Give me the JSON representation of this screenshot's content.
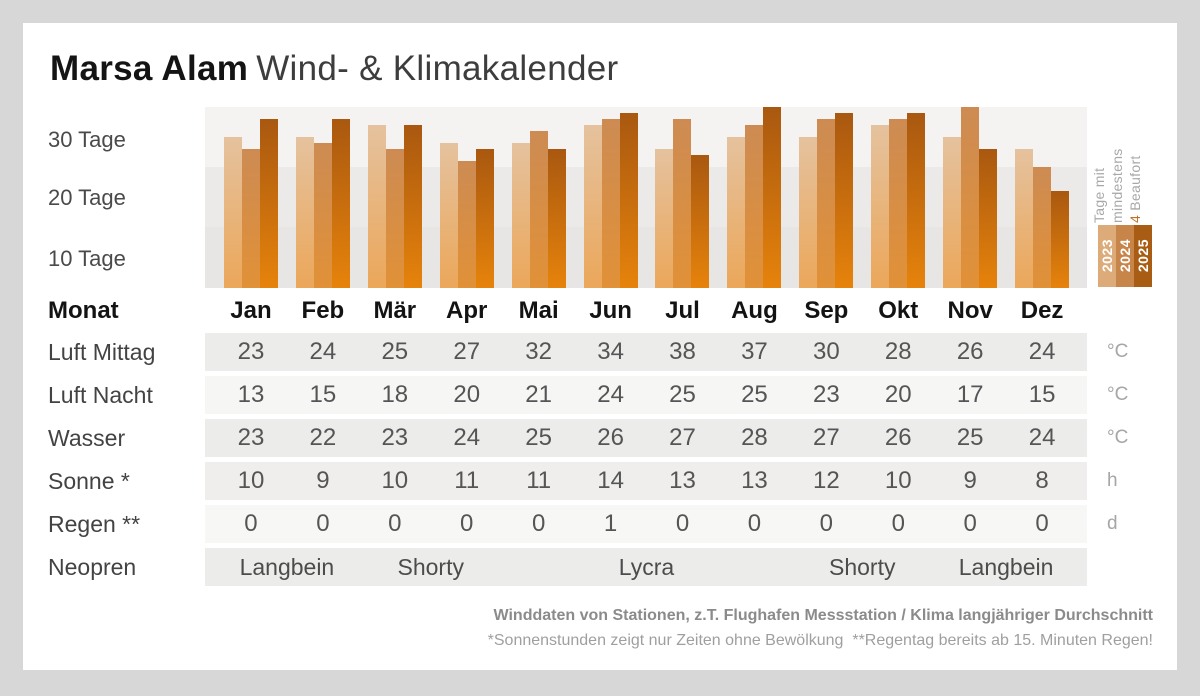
{
  "title": {
    "brand": "Marsa Alam",
    "subtitle": "Wind- & Klimakalender"
  },
  "chart_data": {
    "type": "bar",
    "title": "Tage mit mindestens 4 Beaufort",
    "categories": [
      "Jan",
      "Feb",
      "Mär",
      "Apr",
      "Mai",
      "Jun",
      "Jul",
      "Aug",
      "Sep",
      "Okt",
      "Nov",
      "Dez"
    ],
    "series": [
      {
        "name": "2023",
        "values": [
          25,
          25,
          27,
          24,
          24,
          27,
          23,
          25,
          25,
          27,
          25,
          23
        ]
      },
      {
        "name": "2024",
        "values": [
          23,
          24,
          23,
          21,
          26,
          28,
          28,
          27,
          28,
          28,
          30,
          20
        ]
      },
      {
        "name": "2025",
        "values": [
          28,
          28,
          27,
          23,
          23,
          29,
          22,
          30,
          29,
          29,
          23,
          16
        ]
      }
    ],
    "ylabel": "Tage",
    "ylim": [
      0,
      30
    ],
    "yticks": [
      {
        "value": 30,
        "label": "30 Tage"
      },
      {
        "value": 20,
        "label": "20 Tage"
      },
      {
        "value": 10,
        "label": "10 Tage"
      }
    ],
    "legend_position": "right",
    "grid": "horizontal-bands"
  },
  "legend": {
    "caption": {
      "line1": "Tage mit",
      "line2": "mindestens",
      "value": "4",
      "line3": " Beaufort"
    },
    "years": [
      {
        "label": "2023",
        "color": "#dcab79"
      },
      {
        "label": "2024",
        "color": "#c8854a"
      },
      {
        "label": "2025",
        "color": "#a95c14"
      }
    ]
  },
  "table": {
    "month_header": "Monat",
    "months": [
      "Jan",
      "Feb",
      "Mär",
      "Apr",
      "Mai",
      "Jun",
      "Jul",
      "Aug",
      "Sep",
      "Okt",
      "Nov",
      "Dez"
    ],
    "rows": [
      {
        "label": "Luft Mittag",
        "unit": "°C",
        "values": [
          "23",
          "24",
          "25",
          "27",
          "32",
          "34",
          "38",
          "37",
          "30",
          "28",
          "26",
          "24"
        ]
      },
      {
        "label": "Luft Nacht",
        "unit": "°C",
        "values": [
          "13",
          "15",
          "18",
          "20",
          "21",
          "24",
          "25",
          "25",
          "23",
          "20",
          "17",
          "15"
        ]
      },
      {
        "label": "Wasser",
        "unit": "°C",
        "values": [
          "23",
          "22",
          "23",
          "24",
          "25",
          "26",
          "27",
          "28",
          "27",
          "26",
          "25",
          "24"
        ]
      },
      {
        "label": "Sonne *",
        "unit": "h",
        "values": [
          "10",
          "9",
          "10",
          "11",
          "11",
          "14",
          "13",
          "13",
          "12",
          "10",
          "9",
          "8"
        ]
      },
      {
        "label": "Regen **",
        "unit": "d",
        "values": [
          "0",
          "0",
          "0",
          "0",
          "0",
          "1",
          "0",
          "0",
          "0",
          "0",
          "0",
          "0"
        ]
      }
    ],
    "neopren": {
      "label": "Neopren",
      "segments": [
        {
          "label": "Langbein",
          "months": 2
        },
        {
          "label": "Shorty",
          "months": 2
        },
        {
          "label": "Lycra",
          "months": 4
        },
        {
          "label": "Shorty",
          "months": 2
        },
        {
          "label": "Langbein",
          "months": 2
        }
      ]
    }
  },
  "footer": {
    "line1": "Winddaten von Stationen, z.T. Flughafen Messstation / Klima langjähriger Durchschnitt",
    "line2": "*Sonnenstunden zeigt nur Zeiten ohne Bewölkung  **Regentag bereits ab 15. Minuten Regen!"
  },
  "colors": {
    "page_background": "#d7d7d7",
    "card_background": "#ffffff",
    "accent_orange": "#c07021",
    "series_gradients": [
      {
        "top": "#e5c29e",
        "bottom": "#eba75a"
      },
      {
        "top": "#cd8b53",
        "bottom": "#e19137"
      },
      {
        "top": "#a95810",
        "bottom": "#e6830b"
      }
    ],
    "band_colors": [
      "#f4f3f2",
      "#ebeae9",
      "#e7e6e5"
    ],
    "row_stripes": [
      "#ececeb",
      "#f6f6f5",
      "#ececeb",
      "#efeeed",
      "#f7f7f6",
      "#ececeb"
    ]
  }
}
